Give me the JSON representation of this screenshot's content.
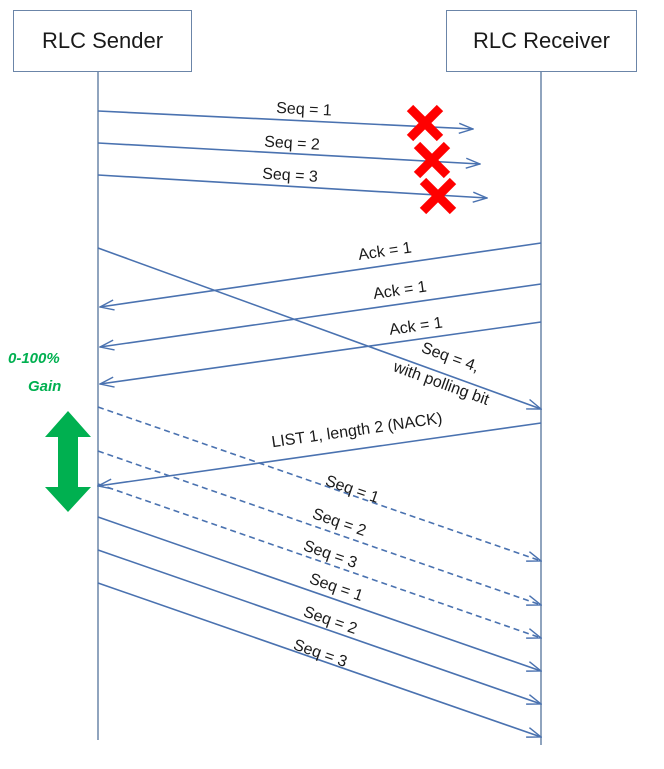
{
  "sender": {
    "title": "RLC Sender"
  },
  "receiver": {
    "title": "RLC Receiver"
  },
  "gain": {
    "line1": "0-100%",
    "line2": "Gain"
  },
  "colors": {
    "line": "#4a72b0",
    "lifeline": "#6b85a8",
    "cross": "#ff0000",
    "gain": "#00b050",
    "text": "#1a1a1a",
    "spell": "#d04040"
  },
  "messages": [
    {
      "id": "seq1-lost",
      "label": "Seq = 1",
      "direction": "to-receiver",
      "style": "solid",
      "lost": true
    },
    {
      "id": "seq2-lost",
      "label": "Seq = 2",
      "direction": "to-receiver",
      "style": "solid",
      "lost": true
    },
    {
      "id": "seq3-lost",
      "label": "Seq = 3",
      "direction": "to-receiver",
      "style": "solid",
      "lost": true
    },
    {
      "id": "ack1-a",
      "label": "Ack = 1",
      "direction": "to-sender",
      "style": "solid"
    },
    {
      "id": "ack1-b",
      "label": "Ack = 1",
      "direction": "to-sender",
      "style": "solid"
    },
    {
      "id": "ack1-c",
      "label": "Ack = 1",
      "direction": "to-sender",
      "style": "solid"
    },
    {
      "id": "seq4-poll",
      "label_lines": [
        "Seq = 4,",
        "with polling bit"
      ],
      "direction": "to-receiver",
      "style": "solid"
    },
    {
      "id": "nack-list",
      "label": "LIST 1, length 2 (NACK)",
      "direction": "to-sender",
      "style": "solid"
    },
    {
      "id": "seq1-dashed",
      "label": "Seq = 1",
      "direction": "to-receiver",
      "style": "dashed"
    },
    {
      "id": "seq2-dashed",
      "label": "Seq = 2",
      "direction": "to-receiver",
      "style": "dashed"
    },
    {
      "id": "seq3-dashed",
      "label": "Seq = 3",
      "direction": "to-receiver",
      "style": "dashed"
    },
    {
      "id": "seq1-retx",
      "label": "Seq = 1",
      "direction": "to-receiver",
      "style": "solid"
    },
    {
      "id": "seq2-retx",
      "label": "Seq = 2",
      "direction": "to-receiver",
      "style": "solid"
    },
    {
      "id": "seq3-retx",
      "label": "Seq = 3",
      "direction": "to-receiver",
      "style": "solid"
    }
  ]
}
